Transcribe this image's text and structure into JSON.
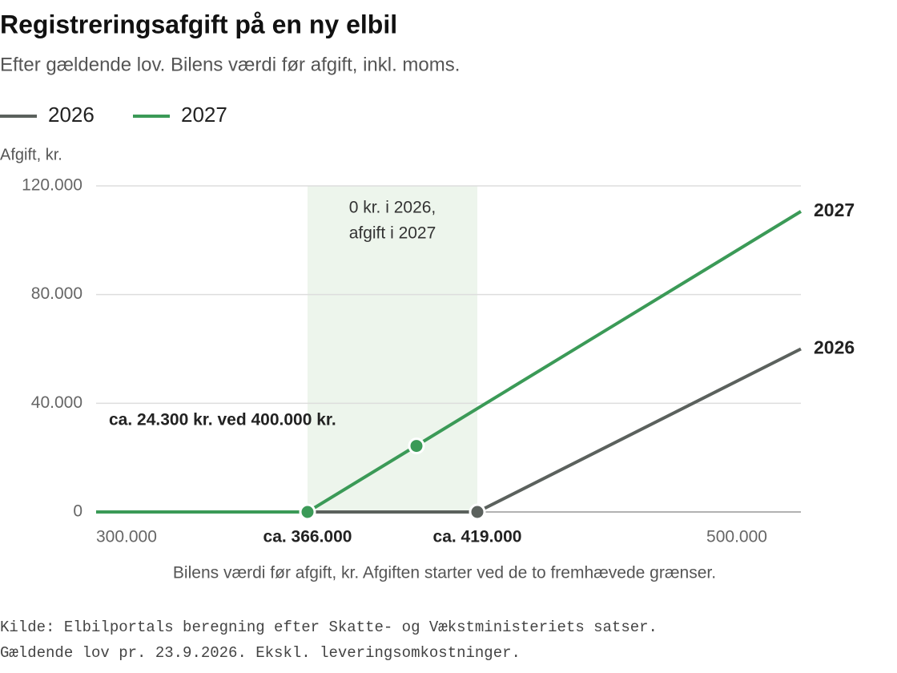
{
  "chart_data": {
    "type": "line",
    "title": "Registreringsafgift på en ny elbil",
    "subtitle": "Efter gældende lov. Bilens værdi før afgift, inkl. moms.",
    "y_label": "Afgift, kr.",
    "x_label": "Bilens værdi før afgift, kr. Afgiften starter ved de to fremhævede grænser.",
    "source": [
      "Kilde: Elbilportals beregning efter Skatte- og Vækstministeriets satser.",
      "Gældende lov pr. 23.9.2026. Ekskl. leveringsomkostninger."
    ],
    "series": [
      {
        "name": "2026",
        "color": "#5b615d",
        "x": [
          300000,
          419000,
          520000
        ],
        "values": [
          0,
          0,
          60000
        ]
      },
      {
        "name": "2027",
        "color": "#3b9a57",
        "x": [
          300000,
          366000,
          520000
        ],
        "values": [
          0,
          0,
          110600
        ]
      }
    ],
    "xlim": [
      300000,
      520000
    ],
    "xticks": [
      {
        "value": 300000,
        "label": "300.000"
      },
      {
        "value": 500000,
        "label": "500.000"
      }
    ],
    "highlight_xticks": [
      {
        "value": 366000,
        "label": "ca. 366.000"
      },
      {
        "value": 419000,
        "label": "ca. 419.000"
      }
    ],
    "ylim": [
      0,
      120000
    ],
    "yticks": [
      {
        "value": 0,
        "label": "0"
      },
      {
        "value": 40000,
        "label": "40.000"
      },
      {
        "value": 80000,
        "label": "80.000"
      },
      {
        "value": 120000,
        "label": "120.000"
      }
    ],
    "grid": true,
    "shade_color": "#edf5ec",
    "shade_label": [
      "0 kr. i 2026,",
      "afgift i 2027"
    ],
    "annotations": [
      {
        "text": "ca. 24.300 kr. ved 400.000 kr.",
        "x": 400000,
        "y": 24300
      }
    ]
  }
}
